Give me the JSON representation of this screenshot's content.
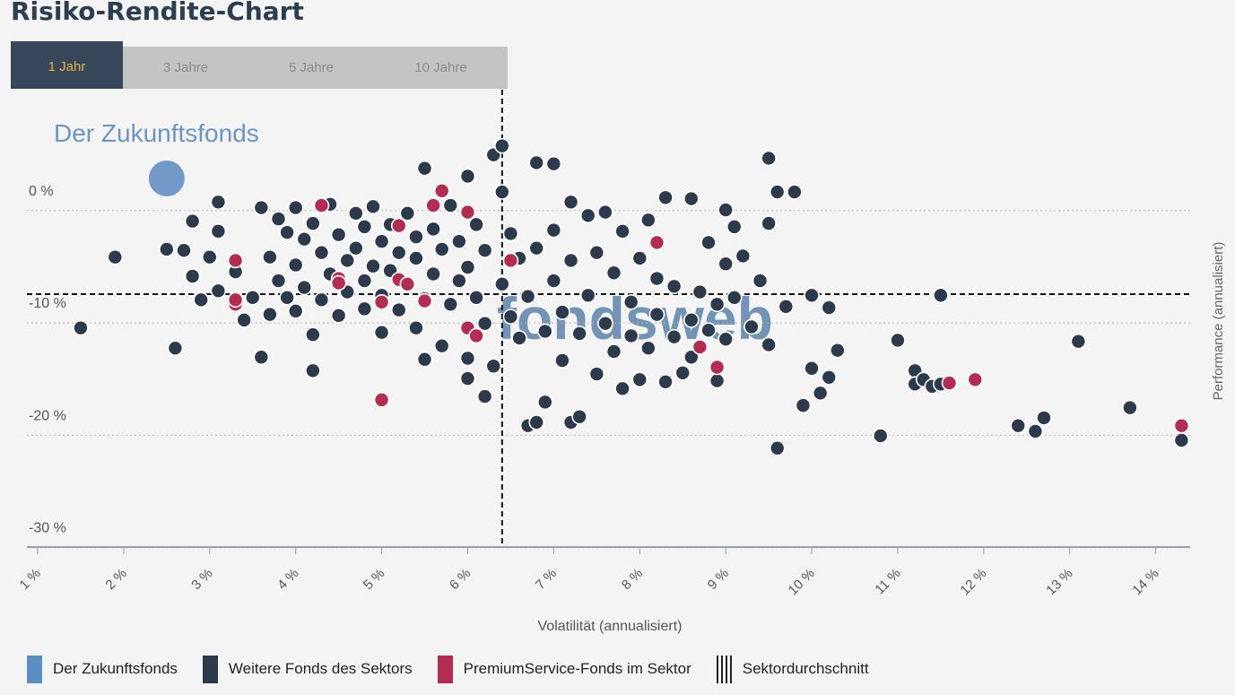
{
  "page": {
    "title": "Risiko-Rendite-Chart",
    "tabs": [
      {
        "label": "1 Jahr",
        "active": true
      },
      {
        "label": "3 Jahre",
        "active": false
      },
      {
        "label": "5 Jahre",
        "active": false
      },
      {
        "label": "10 Jahre",
        "active": false
      }
    ],
    "watermark": "fondsweb"
  },
  "legend": {
    "items": [
      {
        "label": "Der Zukunftsfonds",
        "color": "#5a8dc0"
      },
      {
        "label": "Weitere Fonds des Sektors",
        "color": "#2c3a4c"
      },
      {
        "label": "PremiumService-Fonds im Sektor",
        "color": "#b32c52"
      },
      {
        "label": "Sektordurchschnitt",
        "color": "#222222"
      }
    ]
  },
  "chart_data": {
    "type": "scatter",
    "title": "Risiko-Rendite-Chart",
    "xlabel": "Volatilität (annualisiert)",
    "ylabel": "Performance (annualisiert)",
    "xlim": [
      1,
      14.4
    ],
    "ylim": [
      -31.7,
      9
    ],
    "x_ticks": [
      1,
      2,
      3,
      4,
      5,
      6,
      7,
      8,
      9,
      10,
      11,
      12,
      13,
      14
    ],
    "x_tick_labels": [
      "1 %",
      "2 %",
      "3 %",
      "4 %",
      "5 %",
      "6 %",
      "7 %",
      "8 %",
      "9 %",
      "10 %",
      "11 %",
      "12 %",
      "13 %",
      "14 %"
    ],
    "y_ticks": [
      0,
      -10,
      -20,
      -30
    ],
    "y_tick_labels": [
      "0 %",
      "-10 %",
      "-20 %",
      "-30 %"
    ],
    "grid": "horizontal dotted",
    "sector_average": {
      "x": 6.4,
      "y": -9.2
    },
    "highlight": {
      "name": "Der Zukunftsfonds",
      "x": 2.5,
      "y": 1.1
    },
    "series": [
      {
        "name": "Weitere Fonds des Sektors",
        "color": "#2c3a4c",
        "points": [
          [
            1.5,
            -12.2
          ],
          [
            1.9,
            -5.9
          ],
          [
            2.5,
            -5.2
          ],
          [
            2.6,
            -14
          ],
          [
            2.7,
            -5.3
          ],
          [
            2.8,
            -2.7
          ],
          [
            2.8,
            -7.6
          ],
          [
            2.9,
            -9.7
          ],
          [
            3.0,
            -5.9
          ],
          [
            3.1,
            -8.9
          ],
          [
            3.1,
            -3.6
          ],
          [
            3.1,
            -1.0
          ],
          [
            3.3,
            -7.2
          ],
          [
            3.4,
            -11.5
          ],
          [
            3.5,
            -9.5
          ],
          [
            3.6,
            -14.8
          ],
          [
            3.6,
            -1.5
          ],
          [
            3.7,
            -5.9
          ],
          [
            3.7,
            -11.0
          ],
          [
            3.8,
            -2.5
          ],
          [
            3.8,
            -8.0
          ],
          [
            3.9,
            -3.7
          ],
          [
            3.9,
            -9.5
          ],
          [
            4.0,
            -1.5
          ],
          [
            4.0,
            -6.6
          ],
          [
            4.0,
            -10.7
          ],
          [
            4.1,
            -4.3
          ],
          [
            4.1,
            -8.6
          ],
          [
            4.2,
            -2.9
          ],
          [
            4.2,
            -12.8
          ],
          [
            4.2,
            -16
          ],
          [
            4.3,
            -5.5
          ],
          [
            4.3,
            -9.7
          ],
          [
            4.4,
            -1.2
          ],
          [
            4.4,
            -7.4
          ],
          [
            4.5,
            -3.9
          ],
          [
            4.5,
            -11.1
          ],
          [
            4.6,
            -6.2
          ],
          [
            4.6,
            -9.0
          ],
          [
            4.7,
            -2.0
          ],
          [
            4.7,
            -5.1
          ],
          [
            4.8,
            -8.0
          ],
          [
            4.8,
            -3.2
          ],
          [
            4.8,
            -10.5
          ],
          [
            4.9,
            -1.4
          ],
          [
            4.9,
            -6.7
          ],
          [
            5.0,
            -4.5
          ],
          [
            5.0,
            -9.3
          ],
          [
            5.0,
            -12.6
          ],
          [
            5.1,
            -3.0
          ],
          [
            5.1,
            -7.1
          ],
          [
            5.2,
            -5.5
          ],
          [
            5.2,
            -10.6
          ],
          [
            5.3,
            -2.0
          ],
          [
            5.3,
            -8.3
          ],
          [
            5.4,
            -4.1
          ],
          [
            5.4,
            -12.2
          ],
          [
            5.4,
            -6.0
          ],
          [
            5.5,
            2.0
          ],
          [
            5.5,
            -15
          ],
          [
            5.5,
            -9.6
          ],
          [
            5.6,
            -3.4
          ],
          [
            5.6,
            -7.4
          ],
          [
            5.7,
            -13.8
          ],
          [
            5.7,
            -5.2
          ],
          [
            5.8,
            -1.3
          ],
          [
            5.8,
            -10.1
          ],
          [
            5.9,
            -8.0
          ],
          [
            5.9,
            -4.5
          ],
          [
            6.0,
            1.3
          ],
          [
            6.0,
            -14.9
          ],
          [
            6.0,
            -16.7
          ],
          [
            6.0,
            -6.8
          ],
          [
            6.1,
            -9.5
          ],
          [
            6.1,
            -3.0
          ],
          [
            6.2,
            -11.8
          ],
          [
            6.2,
            -18.3
          ],
          [
            6.2,
            -5.3
          ],
          [
            6.3,
            3.2
          ],
          [
            6.3,
            -15.6
          ],
          [
            6.4,
            4.0
          ],
          [
            6.4,
            -0.1
          ],
          [
            6.4,
            -8.3
          ],
          [
            6.5,
            -3.8
          ],
          [
            6.5,
            -11.2
          ],
          [
            6.6,
            -6.0
          ],
          [
            6.6,
            -13.1
          ],
          [
            6.7,
            -9.4
          ],
          [
            6.7,
            -20.9
          ],
          [
            6.8,
            2.5
          ],
          [
            6.8,
            -5.1
          ],
          [
            6.8,
            -20.6
          ],
          [
            6.9,
            -12.5
          ],
          [
            6.9,
            -18.8
          ],
          [
            7.0,
            2.4
          ],
          [
            7.0,
            -8.0
          ],
          [
            7.0,
            -3.5
          ],
          [
            7.1,
            -10.8
          ],
          [
            7.1,
            -15.1
          ],
          [
            7.2,
            -1.0
          ],
          [
            7.2,
            -6.2
          ],
          [
            7.2,
            -20.6
          ],
          [
            7.3,
            -12.7
          ],
          [
            7.3,
            -20.1
          ],
          [
            7.4,
            -2.2
          ],
          [
            7.4,
            -9.3
          ],
          [
            7.5,
            -5.5
          ],
          [
            7.5,
            -16.3
          ],
          [
            7.6,
            -11.8
          ],
          [
            7.6,
            -1.9
          ],
          [
            7.7,
            -7.3
          ],
          [
            7.7,
            -14.3
          ],
          [
            7.8,
            -3.6
          ],
          [
            7.8,
            -17.6
          ],
          [
            7.9,
            -9.9
          ],
          [
            7.9,
            -12.9
          ],
          [
            8.0,
            -6.0
          ],
          [
            8.0,
            -16.8
          ],
          [
            8.1,
            -2.6
          ],
          [
            8.1,
            -14.0
          ],
          [
            8.2,
            -7.8
          ],
          [
            8.2,
            -11.0
          ],
          [
            8.3,
            -0.6
          ],
          [
            8.3,
            -17.0
          ],
          [
            8.4,
            -13.0
          ],
          [
            8.4,
            -8.5
          ],
          [
            8.5,
            -16.2
          ],
          [
            8.6,
            -0.7
          ],
          [
            8.6,
            -11.5
          ],
          [
            8.6,
            -14.8
          ],
          [
            8.7,
            -9.0
          ],
          [
            8.8,
            -4.6
          ],
          [
            8.8,
            -12.4
          ],
          [
            8.9,
            -10.1
          ],
          [
            8.9,
            -16.9
          ],
          [
            9.0,
            -1.7
          ],
          [
            9.0,
            -6.5
          ],
          [
            9.0,
            -13.2
          ],
          [
            9.1,
            -3.2
          ],
          [
            9.1,
            -9.5
          ],
          [
            9.2,
            -5.8
          ],
          [
            9.3,
            -12.1
          ],
          [
            9.4,
            -8.0
          ],
          [
            9.5,
            -2.9
          ],
          [
            9.5,
            -13.7
          ],
          [
            9.5,
            2.9
          ],
          [
            9.6,
            -0.1
          ],
          [
            9.6,
            -22.9
          ],
          [
            9.7,
            -10.3
          ],
          [
            9.8,
            -0.1
          ],
          [
            9.9,
            -19.1
          ],
          [
            10.0,
            -9.3
          ],
          [
            10.0,
            -15.8
          ],
          [
            10.1,
            -18.0
          ],
          [
            10.2,
            -10.4
          ],
          [
            10.2,
            -16.6
          ],
          [
            10.3,
            -14.2
          ],
          [
            10.8,
            -21.8
          ],
          [
            11.0,
            -13.3
          ],
          [
            11.2,
            -16.0
          ],
          [
            11.2,
            -17.2
          ],
          [
            11.3,
            -16.8
          ],
          [
            11.4,
            -17.4
          ],
          [
            11.5,
            -17.2
          ],
          [
            11.5,
            -9.3
          ],
          [
            12.4,
            -20.9
          ],
          [
            12.6,
            -21.4
          ],
          [
            12.7,
            -20.2
          ],
          [
            13.1,
            -13.4
          ],
          [
            13.7,
            -19.3
          ],
          [
            14.3,
            -22.2
          ]
        ]
      },
      {
        "name": "PremiumService-Fonds im Sektor",
        "color": "#b32c52",
        "points": [
          [
            3.3,
            -6.2
          ],
          [
            3.3,
            -10.1
          ],
          [
            3.3,
            -9.7
          ],
          [
            4.3,
            -1.3
          ],
          [
            4.5,
            -7.8
          ],
          [
            4.5,
            -8.2
          ],
          [
            5.0,
            -18.6
          ],
          [
            5.0,
            -9.9
          ],
          [
            5.2,
            -3.1
          ],
          [
            5.2,
            -7.9
          ],
          [
            5.3,
            -8.3
          ],
          [
            5.5,
            -9.8
          ],
          [
            5.6,
            -1.3
          ],
          [
            5.7,
            0.0
          ],
          [
            6.0,
            -1.9
          ],
          [
            6.0,
            -12.2
          ],
          [
            6.1,
            -12.9
          ],
          [
            6.5,
            -6.2
          ],
          [
            8.2,
            -4.6
          ],
          [
            8.7,
            -13.9
          ],
          [
            8.9,
            -15.7
          ],
          [
            11.6,
            -17.1
          ],
          [
            11.9,
            -16.8
          ],
          [
            14.3,
            -20.9
          ]
        ]
      }
    ]
  }
}
